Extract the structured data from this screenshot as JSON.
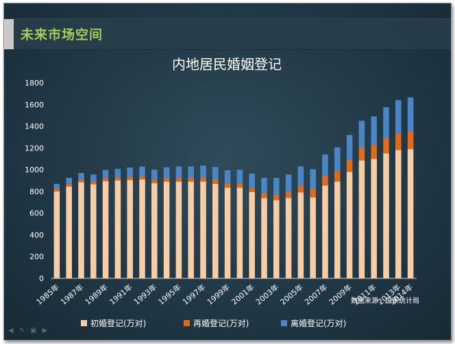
{
  "slide": {
    "title": "未来市场空间"
  },
  "ppt_controls": [
    "back-arrow-icon",
    "pen-icon",
    "slide-icon",
    "forward-arrow-icon"
  ],
  "colors": {
    "first": "#f7cda6",
    "re": "#e06b1a",
    "div": "#4a86c5",
    "text": "#ffffff",
    "accent": "#a6cc58"
  },
  "source_note": "数据来源：国家统计局",
  "chart_data": {
    "type": "bar",
    "stacked": true,
    "title": "内地居民婚姻登记",
    "categories": [
      "1985年",
      "1986年",
      "1987年",
      "1988年",
      "1989年",
      "1990年",
      "1991年",
      "1992年",
      "1993年",
      "1994年",
      "1995年",
      "1996年",
      "1997年",
      "1998年",
      "1999年",
      "2000年",
      "2001年",
      "2002年",
      "2003年",
      "2004年",
      "2005年",
      "2006年",
      "2007年",
      "2008年",
      "2009年",
      "2010年",
      "2011年",
      "2012年",
      "2013年",
      "2014年"
    ],
    "tick_labels": [
      "1985年",
      "1987年",
      "1989年",
      "1991年",
      "1993年",
      "1995年",
      "1997年",
      "1999年",
      "2001年",
      "2003年",
      "2005年",
      "2007年",
      "2009年",
      "2011年",
      "2013年",
      "2014年"
    ],
    "ylim": [
      0,
      1800
    ],
    "yticks": [
      0,
      200,
      400,
      600,
      800,
      1000,
      1200,
      1400,
      1600,
      1800
    ],
    "grid": false,
    "legend": "bottom",
    "series": [
      {
        "name": "初婚登记(万对)",
        "values": [
          800,
          845,
          885,
          865,
          895,
          900,
          905,
          910,
          875,
          890,
          890,
          890,
          890,
          870,
          835,
          835,
          795,
          740,
          720,
          740,
          790,
          745,
          855,
          890,
          980,
          1085,
          1100,
          1150,
          1180,
          1190
        ]
      },
      {
        "name": "再婚登记(万对)",
        "values": [
          25,
          25,
          25,
          25,
          28,
          28,
          30,
          30,
          30,
          32,
          35,
          35,
          38,
          40,
          40,
          40,
          40,
          45,
          50,
          55,
          65,
          80,
          90,
          100,
          110,
          120,
          130,
          140,
          155,
          165
        ]
      },
      {
        "name": "离婚登记(万对)",
        "values": [
          45,
          55,
          60,
          65,
          75,
          80,
          85,
          90,
          95,
          100,
          105,
          105,
          110,
          115,
          120,
          125,
          130,
          140,
          155,
          160,
          175,
          180,
          195,
          215,
          230,
          245,
          260,
          285,
          305,
          310
        ]
      }
    ]
  }
}
